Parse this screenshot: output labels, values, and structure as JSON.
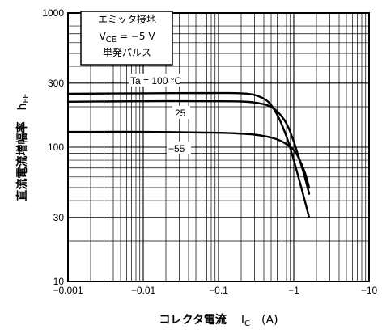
{
  "chart_data": {
    "type": "line",
    "x_scale": "log",
    "y_scale": "log",
    "x_ticks": [
      -0.001,
      -0.01,
      -0.1,
      -1,
      -10
    ],
    "x_tick_labels": [
      "−0.001",
      "−0.01",
      "−0.1",
      "−1",
      "−10"
    ],
    "y_ticks": [
      10,
      30,
      100,
      300,
      1000
    ],
    "y_tick_labels": [
      "10",
      "30",
      "100",
      "300",
      "1000"
    ],
    "xlim": [
      -0.001,
      -10
    ],
    "ylim": [
      10,
      1000
    ],
    "grid": true,
    "xlabel": {
      "main": "コレクタ電流",
      "symbol": "I",
      "subscript": "C",
      "unit": "(A)"
    },
    "ylabel": {
      "main": "直流電流増幅率",
      "symbol": "h",
      "subscript": "FE"
    },
    "conditions_box": {
      "line1": "エミッタ接地",
      "line2_symbol": "V",
      "line2_subscript": "CE",
      "line2_value": "= −5 V",
      "line3": "単発パルス"
    },
    "series": [
      {
        "name": "Ta = 100 °C",
        "x": [
          -0.001,
          -0.01,
          -0.1,
          -0.2,
          -0.3,
          -0.45,
          -0.6,
          -0.8,
          -1.0,
          -1.2,
          -1.4,
          -1.6
        ],
        "y": [
          250,
          252,
          253,
          252,
          245,
          220,
          175,
          120,
          80,
          55,
          40,
          30
        ]
      },
      {
        "name": "25",
        "x": [
          -0.001,
          -0.01,
          -0.1,
          -0.2,
          -0.3,
          -0.45,
          -0.6,
          -0.8,
          -1.0,
          -1.2,
          -1.4,
          -1.6
        ],
        "y": [
          218,
          220,
          220,
          219,
          215,
          205,
          185,
          150,
          110,
          80,
          60,
          45
        ]
      },
      {
        "name": "−55",
        "x": [
          -0.001,
          -0.01,
          -0.1,
          -0.2,
          -0.3,
          -0.5,
          -0.7,
          -1.0,
          -1.2,
          -1.4,
          -1.6
        ],
        "y": [
          130,
          130,
          128,
          126,
          124,
          118,
          110,
          95,
          80,
          65,
          50
        ]
      }
    ]
  }
}
